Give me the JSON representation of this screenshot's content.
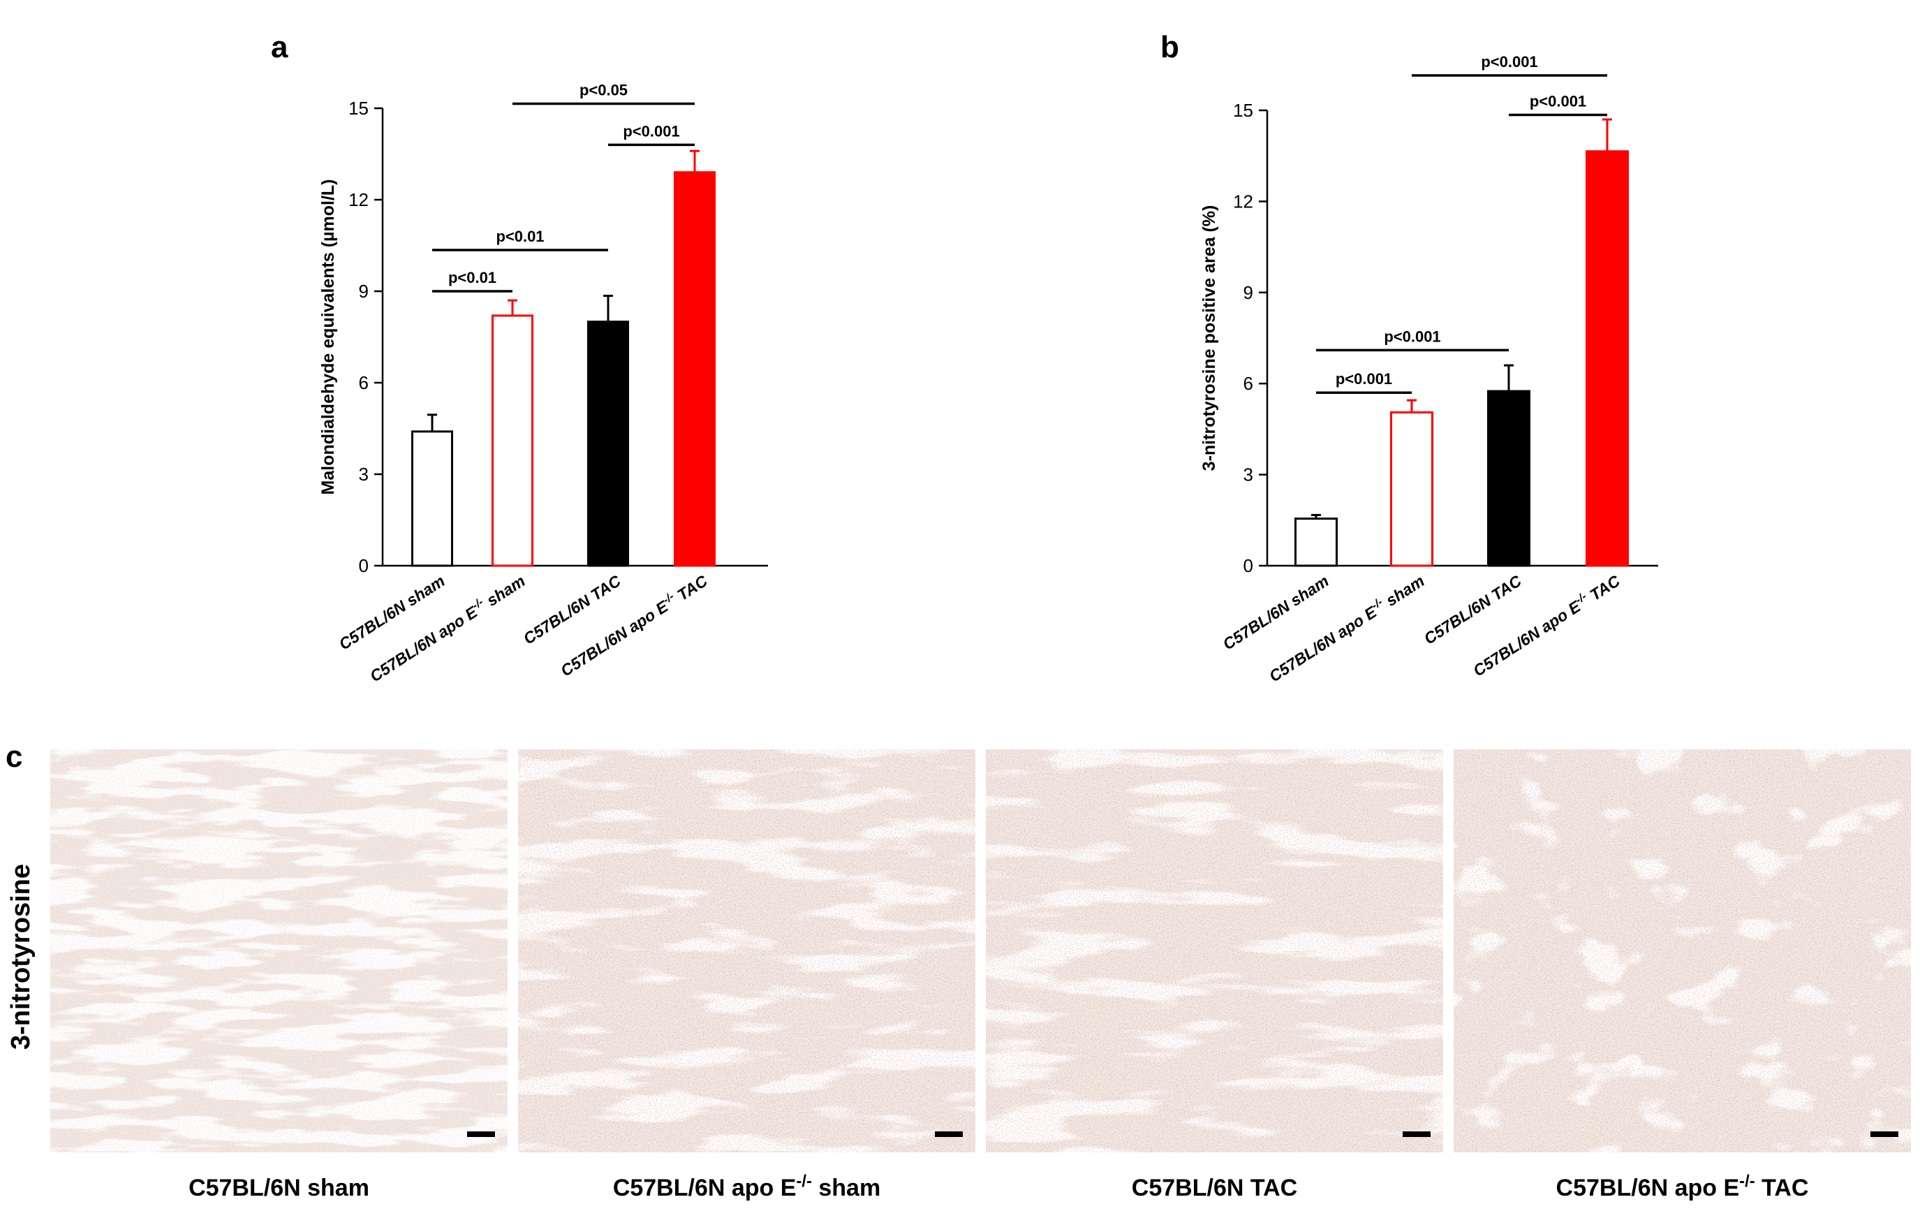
{
  "panel_letters": {
    "a": "a",
    "b": "b",
    "c": "c"
  },
  "chart_data": [
    {
      "type": "bar",
      "panel": "a",
      "ylabel": "Malondialdehyde equivalents (µmol/L)",
      "ylim": [
        0,
        15
      ],
      "yticks": [
        "0",
        "3",
        "6",
        "9",
        "12",
        "15"
      ],
      "categories": [
        {
          "main": "C57BL/6N sham",
          "sup": "",
          "tail": ""
        },
        {
          "main": "C57BL/6N apo E",
          "sup": "-/-",
          "tail": " sham"
        },
        {
          "main": "C57BL/6N TAC",
          "sup": "",
          "tail": ""
        },
        {
          "main": "C57BL/6N apo E",
          "sup": "-/-",
          "tail": " TAC"
        }
      ],
      "values": [
        4.4,
        8.2,
        8.0,
        12.9
      ],
      "errors": [
        0.55,
        0.5,
        0.85,
        0.7
      ],
      "bar_styles": [
        {
          "fill": "#ffffff",
          "stroke": "#000000"
        },
        {
          "fill": "#ffffff",
          "stroke": "#ff0000"
        },
        {
          "fill": "#000000",
          "stroke": "#000000"
        },
        {
          "fill": "#ff0000",
          "stroke": "#ff0000"
        }
      ],
      "comparisons": [
        {
          "from": 0,
          "to": 1,
          "label": "p<0.01",
          "level": 9.0
        },
        {
          "from": 0,
          "to": 2,
          "label": "p<0.01",
          "level": 10.35
        },
        {
          "from": 2,
          "to": 3,
          "label": "p<0.001",
          "level": 13.8
        },
        {
          "from": 1,
          "to": 3,
          "label": "p<0.05",
          "level": 15.15
        }
      ]
    },
    {
      "type": "bar",
      "panel": "b",
      "ylabel": "3-nitrotyrosine positive area (%)",
      "ylim": [
        0,
        15
      ],
      "yticks": [
        "0",
        "3",
        "6",
        "9",
        "12",
        "15"
      ],
      "categories": [
        {
          "main": "C57BL/6N sham",
          "sup": "",
          "tail": ""
        },
        {
          "main": "C57BL/6N apo E",
          "sup": "-/-",
          "tail": " sham"
        },
        {
          "main": "C57BL/6N TAC",
          "sup": "",
          "tail": ""
        },
        {
          "main": "C57BL/6N apo E",
          "sup": "-/-",
          "tail": " TAC"
        }
      ],
      "values": [
        1.55,
        5.05,
        5.75,
        13.65
      ],
      "errors": [
        0.12,
        0.4,
        0.85,
        1.05
      ],
      "bar_styles": [
        {
          "fill": "#ffffff",
          "stroke": "#000000"
        },
        {
          "fill": "#ffffff",
          "stroke": "#ff0000"
        },
        {
          "fill": "#000000",
          "stroke": "#000000"
        },
        {
          "fill": "#ff0000",
          "stroke": "#ff0000"
        }
      ],
      "comparisons": [
        {
          "from": 0,
          "to": 1,
          "label": "p<0.001",
          "level": 5.7
        },
        {
          "from": 0,
          "to": 2,
          "label": "p<0.001",
          "level": 7.1
        },
        {
          "from": 2,
          "to": 3,
          "label": "p<0.001",
          "level": 14.85
        },
        {
          "from": 1,
          "to": 3,
          "label": "p<0.001",
          "level": 16.15
        }
      ]
    }
  ],
  "micrographs": {
    "row_label": "3-nitrotyrosine",
    "panels": [
      {
        "caption_main": "C57BL/6N sham",
        "caption_sup": "",
        "caption_tail": ""
      },
      {
        "caption_main": "C57BL/6N apo E",
        "caption_sup": "-/-",
        "caption_tail": " sham"
      },
      {
        "caption_main": "C57BL/6N TAC",
        "caption_sup": "",
        "caption_tail": ""
      },
      {
        "caption_main": "C57BL/6N apo E",
        "caption_sup": "-/-",
        "caption_tail": " TAC"
      }
    ],
    "stain_colors": [
      "#e2bfb8",
      "#cf9a84",
      "#d3a18c",
      "#c9937e"
    ],
    "background_color": "#f2e8e4"
  }
}
